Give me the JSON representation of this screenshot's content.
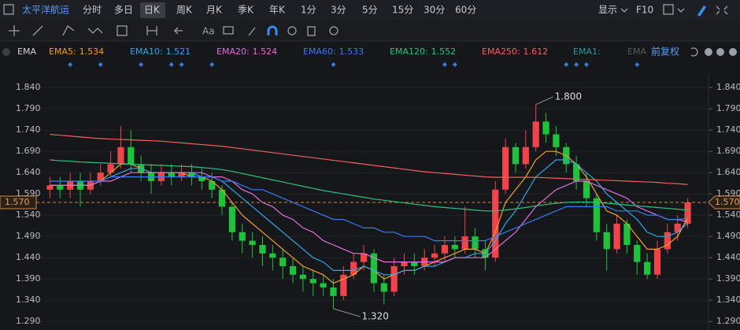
{
  "toolbar": {
    "stock": "太平洋航运",
    "periods": [
      "分时",
      "多日",
      "日K",
      "周K",
      "月K",
      "季K",
      "年K",
      "1分",
      "3分",
      "5分",
      "15分",
      "30分",
      "60分"
    ],
    "active": "日K",
    "display": "显示",
    "f10": "F10",
    "font_tool": "Aa"
  },
  "chart_data": {
    "type": "candlestick",
    "indicator": "EMA",
    "adjust": "前复权",
    "open": [
      1.6,
      1.61,
      1.6,
      1.62,
      1.6,
      1.62,
      1.64,
      1.66,
      1.7,
      1.66,
      1.64,
      1.62,
      1.64,
      1.63,
      1.64,
      1.63,
      1.62,
      1.6,
      1.56,
      1.5,
      1.48,
      1.47,
      1.45,
      1.44,
      1.42,
      1.4,
      1.39,
      1.38,
      1.37,
      1.35,
      1.4,
      1.43,
      1.45,
      1.38,
      1.36,
      1.42,
      1.43,
      1.42,
      1.44,
      1.45,
      1.47,
      1.46,
      1.49,
      1.46,
      1.44,
      1.6,
      1.7,
      1.66,
      1.7,
      1.76,
      1.73,
      1.7,
      1.66,
      1.62,
      1.58,
      1.5,
      1.46,
      1.52,
      1.47,
      1.43,
      1.4,
      1.46,
      1.5,
      1.52
    ],
    "high": [
      1.63,
      1.63,
      1.64,
      1.64,
      1.64,
      1.66,
      1.69,
      1.75,
      1.74,
      1.68,
      1.66,
      1.66,
      1.66,
      1.66,
      1.66,
      1.65,
      1.64,
      1.61,
      1.57,
      1.52,
      1.5,
      1.49,
      1.47,
      1.46,
      1.44,
      1.42,
      1.41,
      1.4,
      1.39,
      1.42,
      1.45,
      1.47,
      1.46,
      1.4,
      1.44,
      1.45,
      1.45,
      1.46,
      1.47,
      1.49,
      1.49,
      1.56,
      1.51,
      1.48,
      1.62,
      1.72,
      1.71,
      1.74,
      1.8,
      1.78,
      1.75,
      1.71,
      1.68,
      1.64,
      1.59,
      1.52,
      1.54,
      1.53,
      1.48,
      1.45,
      1.48,
      1.52,
      1.54,
      1.58
    ],
    "low": [
      1.58,
      1.58,
      1.58,
      1.56,
      1.59,
      1.61,
      1.63,
      1.65,
      1.64,
      1.62,
      1.59,
      1.61,
      1.61,
      1.62,
      1.61,
      1.6,
      1.58,
      1.54,
      1.48,
      1.45,
      1.44,
      1.42,
      1.41,
      1.39,
      1.38,
      1.36,
      1.35,
      1.35,
      1.32,
      1.34,
      1.39,
      1.41,
      1.36,
      1.33,
      1.35,
      1.4,
      1.4,
      1.41,
      1.42,
      1.43,
      1.44,
      1.45,
      1.44,
      1.41,
      1.43,
      1.59,
      1.64,
      1.65,
      1.69,
      1.71,
      1.68,
      1.64,
      1.6,
      1.56,
      1.48,
      1.41,
      1.45,
      1.45,
      1.4,
      1.39,
      1.39,
      1.45,
      1.48,
      1.51
    ],
    "close": [
      1.61,
      1.6,
      1.62,
      1.6,
      1.62,
      1.64,
      1.66,
      1.7,
      1.66,
      1.64,
      1.62,
      1.64,
      1.63,
      1.64,
      1.63,
      1.62,
      1.6,
      1.56,
      1.5,
      1.48,
      1.47,
      1.45,
      1.44,
      1.42,
      1.4,
      1.39,
      1.38,
      1.37,
      1.35,
      1.4,
      1.43,
      1.45,
      1.38,
      1.36,
      1.42,
      1.43,
      1.42,
      1.44,
      1.45,
      1.47,
      1.46,
      1.49,
      1.46,
      1.44,
      1.6,
      1.7,
      1.66,
      1.7,
      1.76,
      1.73,
      1.7,
      1.66,
      1.62,
      1.58,
      1.5,
      1.46,
      1.52,
      1.47,
      1.43,
      1.4,
      1.46,
      1.5,
      1.52,
      1.57
    ],
    "up_color": "#f0444a",
    "down_color": "#1fc23a",
    "series": [
      {
        "name": "EMA5:",
        "color": "#f0a030",
        "current": 1.534,
        "values": [
          1.61,
          1.61,
          1.61,
          1.61,
          1.61,
          1.62,
          1.64,
          1.66,
          1.66,
          1.65,
          1.64,
          1.64,
          1.64,
          1.64,
          1.63,
          1.63,
          1.62,
          1.6,
          1.57,
          1.54,
          1.52,
          1.5,
          1.48,
          1.46,
          1.44,
          1.42,
          1.41,
          1.4,
          1.38,
          1.39,
          1.4,
          1.42,
          1.41,
          1.39,
          1.4,
          1.41,
          1.41,
          1.42,
          1.43,
          1.44,
          1.45,
          1.46,
          1.46,
          1.45,
          1.5,
          1.57,
          1.6,
          1.63,
          1.67,
          1.69,
          1.69,
          1.68,
          1.66,
          1.63,
          1.59,
          1.55,
          1.54,
          1.52,
          1.49,
          1.46,
          1.46,
          1.47,
          1.49,
          1.534
        ]
      },
      {
        "name": "EMA10:",
        "color": "#2ea8e8",
        "current": 1.521,
        "values": [
          1.61,
          1.61,
          1.61,
          1.61,
          1.61,
          1.62,
          1.63,
          1.64,
          1.65,
          1.65,
          1.64,
          1.64,
          1.64,
          1.64,
          1.64,
          1.63,
          1.63,
          1.62,
          1.6,
          1.58,
          1.56,
          1.54,
          1.52,
          1.5,
          1.48,
          1.46,
          1.44,
          1.43,
          1.41,
          1.41,
          1.41,
          1.42,
          1.41,
          1.4,
          1.4,
          1.41,
          1.41,
          1.42,
          1.42,
          1.43,
          1.44,
          1.44,
          1.45,
          1.45,
          1.48,
          1.52,
          1.55,
          1.59,
          1.63,
          1.65,
          1.67,
          1.67,
          1.66,
          1.64,
          1.62,
          1.59,
          1.57,
          1.55,
          1.53,
          1.5,
          1.49,
          1.49,
          1.5,
          1.521
        ]
      },
      {
        "name": "EMA20:",
        "color": "#e070e0",
        "current": 1.524,
        "values": [
          1.61,
          1.61,
          1.61,
          1.61,
          1.61,
          1.62,
          1.62,
          1.63,
          1.64,
          1.64,
          1.64,
          1.64,
          1.64,
          1.64,
          1.64,
          1.64,
          1.63,
          1.63,
          1.62,
          1.6,
          1.59,
          1.57,
          1.56,
          1.54,
          1.53,
          1.51,
          1.5,
          1.48,
          1.47,
          1.46,
          1.45,
          1.45,
          1.44,
          1.43,
          1.43,
          1.43,
          1.43,
          1.43,
          1.43,
          1.43,
          1.44,
          1.44,
          1.44,
          1.44,
          1.46,
          1.48,
          1.5,
          1.53,
          1.56,
          1.58,
          1.6,
          1.61,
          1.62,
          1.62,
          1.61,
          1.6,
          1.59,
          1.58,
          1.56,
          1.55,
          1.54,
          1.53,
          1.53,
          1.524
        ]
      },
      {
        "name": "EMA60:",
        "color": "#3a7bf0",
        "current": 1.533,
        "values": [
          1.62,
          1.62,
          1.62,
          1.62,
          1.62,
          1.62,
          1.63,
          1.63,
          1.63,
          1.63,
          1.63,
          1.63,
          1.63,
          1.63,
          1.63,
          1.63,
          1.63,
          1.62,
          1.62,
          1.61,
          1.6,
          1.6,
          1.59,
          1.58,
          1.57,
          1.56,
          1.55,
          1.54,
          1.53,
          1.53,
          1.52,
          1.51,
          1.51,
          1.5,
          1.5,
          1.49,
          1.49,
          1.49,
          1.48,
          1.48,
          1.48,
          1.48,
          1.48,
          1.48,
          1.49,
          1.5,
          1.51,
          1.52,
          1.53,
          1.54,
          1.55,
          1.56,
          1.56,
          1.56,
          1.56,
          1.56,
          1.55,
          1.55,
          1.55,
          1.54,
          1.54,
          1.53,
          1.53,
          1.533
        ]
      },
      {
        "name": "EMA120:",
        "color": "#2ec27e",
        "current": 1.552,
        "values": [
          1.67,
          1.668,
          1.667,
          1.665,
          1.664,
          1.663,
          1.662,
          1.661,
          1.66,
          1.659,
          1.658,
          1.657,
          1.656,
          1.655,
          1.654,
          1.652,
          1.65,
          1.647,
          1.643,
          1.638,
          1.633,
          1.628,
          1.623,
          1.618,
          1.613,
          1.608,
          1.603,
          1.598,
          1.594,
          1.59,
          1.586,
          1.582,
          1.578,
          1.575,
          1.572,
          1.569,
          1.566,
          1.563,
          1.56,
          1.558,
          1.556,
          1.554,
          1.552,
          1.55,
          1.55,
          1.552,
          1.555,
          1.558,
          1.562,
          1.565,
          1.568,
          1.57,
          1.571,
          1.571,
          1.57,
          1.568,
          1.566,
          1.564,
          1.562,
          1.56,
          1.558,
          1.556,
          1.554,
          1.552
        ]
      },
      {
        "name": "EMA250:",
        "color": "#f06060",
        "current": 1.612,
        "values": [
          1.73,
          1.728,
          1.726,
          1.724,
          1.722,
          1.72,
          1.719,
          1.718,
          1.717,
          1.716,
          1.715,
          1.714,
          1.712,
          1.71,
          1.708,
          1.706,
          1.704,
          1.702,
          1.699,
          1.696,
          1.693,
          1.69,
          1.687,
          1.684,
          1.681,
          1.678,
          1.675,
          1.672,
          1.669,
          1.666,
          1.663,
          1.66,
          1.657,
          1.654,
          1.651,
          1.648,
          1.645,
          1.642,
          1.64,
          1.638,
          1.636,
          1.634,
          1.632,
          1.63,
          1.629,
          1.629,
          1.629,
          1.629,
          1.629,
          1.628,
          1.627,
          1.626,
          1.625,
          1.624,
          1.623,
          1.622,
          1.621,
          1.62,
          1.619,
          1.618,
          1.617,
          1.615,
          1.614,
          1.612
        ]
      }
    ],
    "extra_legend": [
      {
        "name": "EMA1:",
        "color": "#2a9a9a"
      },
      {
        "name": "EMA",
        "color": "#555a60"
      }
    ],
    "event_markers": [
      2,
      5,
      9,
      12,
      13,
      16,
      28,
      39,
      40,
      51,
      52,
      53,
      58
    ],
    "high_label": {
      "value": 1.8,
      "label": "1.800",
      "index": 48
    },
    "low_label": {
      "value": 1.32,
      "label": "1.320",
      "index": 28
    },
    "last_price": {
      "value": 1.57,
      "label": "1.570"
    },
    "ylim": [
      1.27,
      1.87
    ],
    "yticks": [
      {
        "value": 1.84,
        "label": "1.840"
      },
      {
        "value": 1.79,
        "label": "1.790"
      },
      {
        "value": 1.74,
        "label": "1.740"
      },
      {
        "value": 1.69,
        "label": "1.690"
      },
      {
        "value": 1.64,
        "label": "1.640"
      },
      {
        "value": 1.59,
        "label": "1.590"
      },
      {
        "value": 1.54,
        "label": "1.540"
      },
      {
        "value": 1.49,
        "label": "1.490"
      },
      {
        "value": 1.44,
        "label": "1.440"
      },
      {
        "value": 1.39,
        "label": "1.390"
      },
      {
        "value": 1.34,
        "label": "1.340"
      },
      {
        "value": 1.29,
        "label": "1.290"
      }
    ],
    "grid": true
  }
}
